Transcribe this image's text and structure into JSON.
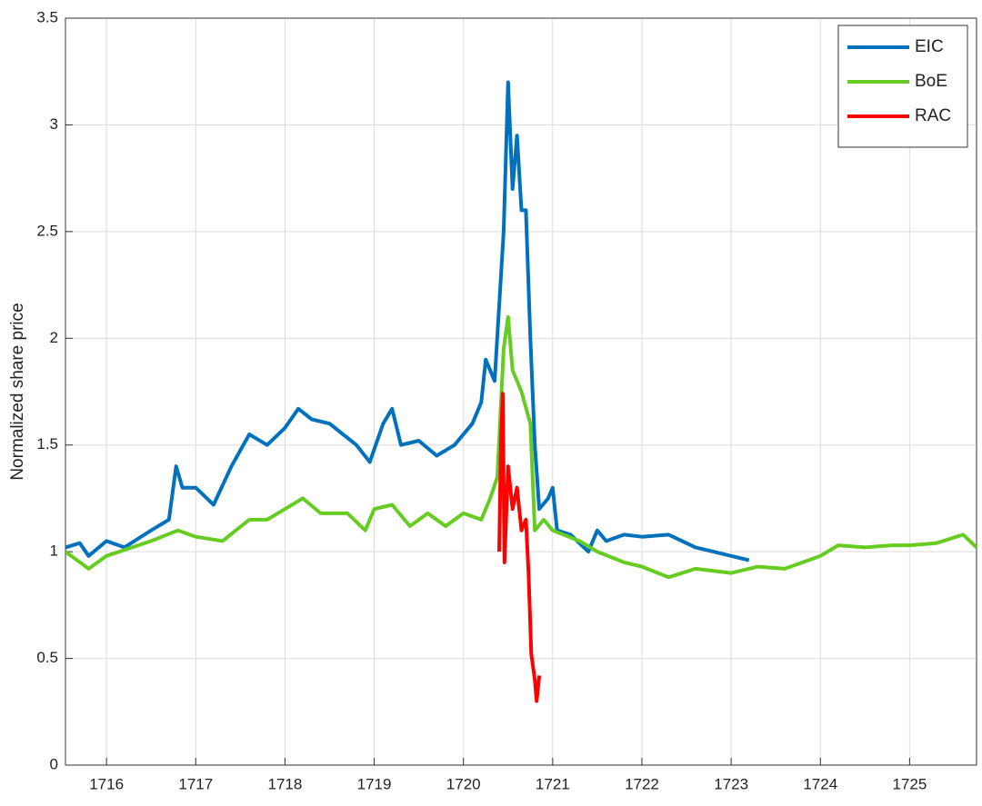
{
  "chart_data": {
    "type": "line",
    "ylabel": "Normalized share price",
    "xlim": [
      1715.54,
      1725.75
    ],
    "xticks": [
      1716,
      1717,
      1718,
      1719,
      1720,
      1721,
      1722,
      1723,
      1724,
      1725
    ],
    "ylim": [
      0,
      3.5
    ],
    "yticks": [
      0,
      0.5,
      1,
      1.5,
      2,
      2.5,
      3,
      3.5
    ],
    "grid": true,
    "legend": "top-right",
    "series": [
      {
        "name": "EIC",
        "color": "#0072bd",
        "x": [
          1715.54,
          1715.7,
          1715.8,
          1716.0,
          1716.2,
          1716.5,
          1716.7,
          1716.78,
          1716.85,
          1717.0,
          1717.2,
          1717.4,
          1717.6,
          1717.8,
          1718.0,
          1718.15,
          1718.3,
          1718.5,
          1718.8,
          1718.95,
          1719.1,
          1719.2,
          1719.3,
          1719.5,
          1719.7,
          1719.9,
          1720.1,
          1720.2,
          1720.25,
          1720.35,
          1720.45,
          1720.5,
          1720.55,
          1720.6,
          1720.65,
          1720.7,
          1720.75,
          1720.8,
          1720.85,
          1720.95,
          1721.0,
          1721.05,
          1721.2,
          1721.4,
          1721.5,
          1721.6,
          1721.8,
          1722.0,
          1722.3,
          1722.6,
          1722.8,
          1723.0,
          1723.2
        ],
        "values": [
          1.02,
          1.04,
          0.98,
          1.05,
          1.02,
          1.1,
          1.15,
          1.4,
          1.3,
          1.3,
          1.22,
          1.4,
          1.55,
          1.5,
          1.58,
          1.67,
          1.62,
          1.6,
          1.5,
          1.42,
          1.6,
          1.67,
          1.5,
          1.52,
          1.45,
          1.5,
          1.6,
          1.7,
          1.9,
          1.8,
          2.5,
          3.2,
          2.7,
          2.95,
          2.6,
          2.6,
          2.0,
          1.5,
          1.2,
          1.25,
          1.3,
          1.1,
          1.08,
          1.0,
          1.1,
          1.05,
          1.08,
          1.07,
          1.08,
          1.02,
          1.0,
          0.98,
          0.96
        ]
      },
      {
        "name": "BoE",
        "color": "#66cc22",
        "x": [
          1715.54,
          1715.8,
          1716.0,
          1716.5,
          1716.8,
          1717.0,
          1717.3,
          1717.6,
          1717.8,
          1718.0,
          1718.2,
          1718.4,
          1718.7,
          1718.9,
          1719.0,
          1719.2,
          1719.4,
          1719.6,
          1719.8,
          1720.0,
          1720.2,
          1720.3,
          1720.38,
          1720.45,
          1720.5,
          1720.55,
          1720.65,
          1720.75,
          1720.8,
          1720.9,
          1721.0,
          1721.3,
          1721.5,
          1721.8,
          1722.0,
          1722.3,
          1722.6,
          1723.0,
          1723.3,
          1723.6,
          1724.0,
          1724.2,
          1724.5,
          1724.8,
          1725.0,
          1725.3,
          1725.6,
          1725.75
        ],
        "values": [
          1.0,
          0.92,
          0.98,
          1.05,
          1.1,
          1.07,
          1.05,
          1.15,
          1.15,
          1.2,
          1.25,
          1.18,
          1.18,
          1.1,
          1.2,
          1.22,
          1.12,
          1.18,
          1.12,
          1.18,
          1.15,
          1.25,
          1.35,
          1.95,
          2.1,
          1.85,
          1.75,
          1.6,
          1.1,
          1.15,
          1.1,
          1.05,
          1.0,
          0.95,
          0.93,
          0.88,
          0.92,
          0.9,
          0.93,
          0.92,
          0.98,
          1.03,
          1.02,
          1.03,
          1.03,
          1.04,
          1.08,
          1.02
        ]
      },
      {
        "name": "RAC",
        "color": "#ff0000",
        "x": [
          1720.4,
          1720.42,
          1720.44,
          1720.46,
          1720.5,
          1720.55,
          1720.6,
          1720.65,
          1720.7,
          1720.73,
          1720.76,
          1720.8,
          1720.82,
          1720.85
        ],
        "values": [
          1.0,
          1.5,
          1.74,
          0.95,
          1.4,
          1.2,
          1.3,
          1.1,
          1.15,
          0.9,
          0.52,
          0.4,
          0.3,
          0.42
        ]
      }
    ]
  }
}
